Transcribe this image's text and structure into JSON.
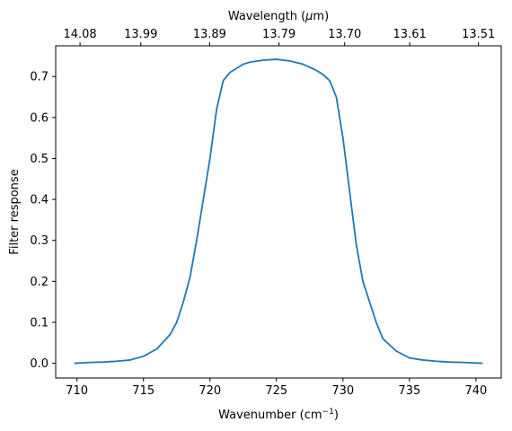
{
  "chart_data": {
    "type": "line",
    "xlabel": "Wavenumber (cm",
    "xlabel_sup": "−1",
    "xlabel_close": ")",
    "ylabel": "Filter response",
    "top_xlabel_prefix": "Wavelength (",
    "top_xlabel_mu": "μ",
    "top_xlabel_suffix": "m)",
    "xlim": [
      708.4,
      741.9
    ],
    "ylim": [
      -0.036,
      0.775
    ],
    "x_ticks": [
      710,
      715,
      720,
      725,
      730,
      735,
      740
    ],
    "x_tick_labels": [
      "710",
      "715",
      "720",
      "725",
      "730",
      "735",
      "740"
    ],
    "y_ticks": [
      0.0,
      0.1,
      0.2,
      0.3,
      0.4,
      0.5,
      0.6,
      0.7
    ],
    "y_tick_labels": [
      "0.0",
      "0.1",
      "0.2",
      "0.3",
      "0.4",
      "0.5",
      "0.6",
      "0.7"
    ],
    "top_ticks_wavenumber": [
      710.23,
      714.8,
      719.97,
      725.19,
      730.13,
      735.02,
      740.19
    ],
    "top_tick_labels": [
      "14.08",
      "13.99",
      "13.89",
      "13.79",
      "13.70",
      "13.61",
      "13.51"
    ],
    "grid": false,
    "colors": {
      "line": "#1f77b4",
      "axes": "#000000",
      "background": "#ffffff"
    },
    "series": [
      {
        "x": [
          709.8,
          711.0,
          712.0,
          713.0,
          714.0,
          715.0,
          716.0,
          717.0,
          717.5,
          718.0,
          718.5,
          719.0,
          719.5,
          720.0,
          720.5,
          721.0,
          721.5,
          722.0,
          722.5,
          723.0,
          724.0,
          725.0,
          726.0,
          727.0,
          728.0,
          728.5,
          729.0,
          729.5,
          730.0,
          730.5,
          731.0,
          731.5,
          732.0,
          732.5,
          733.0,
          734.0,
          735.0,
          736.0,
          737.0,
          738.0,
          739.0,
          740.5
        ],
        "y": [
          0.0,
          0.002,
          0.003,
          0.005,
          0.008,
          0.017,
          0.035,
          0.07,
          0.1,
          0.15,
          0.21,
          0.3,
          0.4,
          0.5,
          0.62,
          0.69,
          0.71,
          0.72,
          0.73,
          0.735,
          0.74,
          0.742,
          0.738,
          0.73,
          0.715,
          0.705,
          0.69,
          0.65,
          0.55,
          0.42,
          0.29,
          0.2,
          0.15,
          0.1,
          0.06,
          0.03,
          0.013,
          0.008,
          0.005,
          0.003,
          0.002,
          0.0
        ]
      }
    ]
  }
}
